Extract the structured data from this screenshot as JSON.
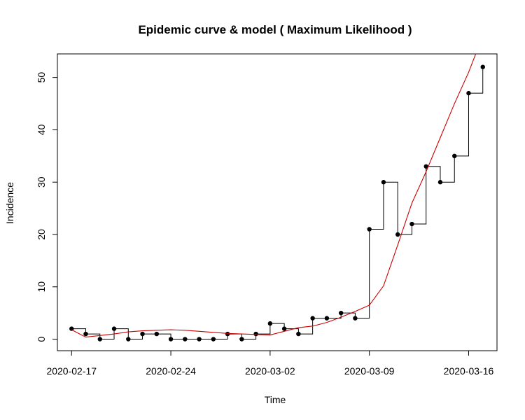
{
  "chart_data": {
    "type": "line",
    "title": "Epidemic curve & model ( Maximum Likelihood )",
    "xlabel": "Time",
    "ylabel": "Incidence",
    "x_start": "2020-02-17",
    "x_ticks": [
      "2020-02-17",
      "2020-02-24",
      "2020-03-02",
      "2020-03-09",
      "2020-03-16"
    ],
    "y_ticks": [
      0,
      10,
      20,
      30,
      40,
      50
    ],
    "xlim": [
      "2020-02-16",
      "2020-03-18"
    ],
    "ylim": [
      -2.2,
      54.5
    ],
    "grid": false,
    "series": [
      {
        "color": "#000000",
        "style": "step-points",
        "dates": [
          "2020-02-17",
          "2020-02-18",
          "2020-02-19",
          "2020-02-20",
          "2020-02-21",
          "2020-02-22",
          "2020-02-23",
          "2020-02-24",
          "2020-02-25",
          "2020-02-26",
          "2020-02-27",
          "2020-02-28",
          "2020-02-29",
          "2020-03-01",
          "2020-03-02",
          "2020-03-03",
          "2020-03-04",
          "2020-03-05",
          "2020-03-06",
          "2020-03-07",
          "2020-03-08",
          "2020-03-09",
          "2020-03-10",
          "2020-03-11",
          "2020-03-12",
          "2020-03-13",
          "2020-03-14",
          "2020-03-15",
          "2020-03-16",
          "2020-03-17"
        ],
        "values": [
          2,
          1,
          0,
          2,
          0,
          1,
          1,
          0,
          0,
          0,
          0,
          1,
          0,
          1,
          3,
          2,
          1,
          4,
          4,
          5,
          4,
          21,
          30,
          20,
          22,
          33,
          30,
          35,
          47,
          52
        ]
      },
      {
        "color": "#cc0000",
        "style": "line",
        "dates": [
          "2020-02-17",
          "2020-02-18",
          "2020-02-19",
          "2020-02-20",
          "2020-02-21",
          "2020-02-22",
          "2020-02-23",
          "2020-02-24",
          "2020-02-25",
          "2020-02-26",
          "2020-02-27",
          "2020-02-28",
          "2020-02-29",
          "2020-03-01",
          "2020-03-02",
          "2020-03-03",
          "2020-03-04",
          "2020-03-05",
          "2020-03-06",
          "2020-03-07",
          "2020-03-08",
          "2020-03-09",
          "2020-03-10",
          "2020-03-11",
          "2020-03-12",
          "2020-03-13",
          "2020-03-14",
          "2020-03-15",
          "2020-03-16",
          "2020-03-17"
        ],
        "values": [
          1.8,
          0.4,
          0.7,
          1.0,
          1.4,
          1.6,
          1.7,
          1.8,
          1.7,
          1.5,
          1.3,
          1.1,
          1.0,
          0.9,
          0.8,
          1.5,
          2.2,
          2.5,
          3.2,
          4.2,
          5.3,
          6.5,
          10.2,
          18.0,
          26.0,
          32.0,
          38.5,
          45.0,
          51.0,
          58.0
        ]
      }
    ]
  }
}
